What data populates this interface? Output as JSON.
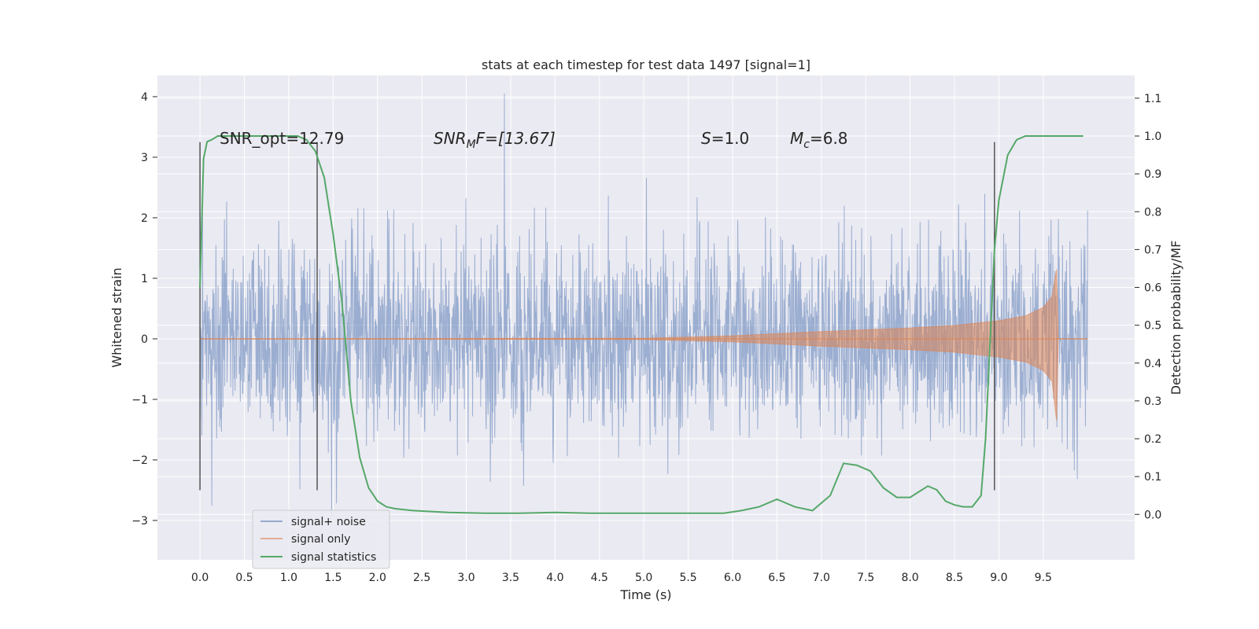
{
  "chart_data": {
    "type": "line",
    "title": "stats at each timestep for test data 1497 [signal=1]",
    "xlabel": "Time (s)",
    "ylabel": "Whitened strain",
    "y2label": "Detection probability/MF",
    "xlim": [
      -0.48,
      10.53
    ],
    "ylim": [
      -3.65,
      4.35
    ],
    "y2lim": [
      -0.12,
      1.16
    ],
    "xticks": [
      "0.0",
      "0.5",
      "1.0",
      "1.5",
      "2.0",
      "2.5",
      "3.0",
      "3.5",
      "4.0",
      "4.5",
      "5.0",
      "5.5",
      "6.0",
      "6.5",
      "7.0",
      "7.5",
      "8.0",
      "8.5",
      "9.0",
      "9.5"
    ],
    "yticks": [
      "4",
      "3",
      "2",
      "1",
      "0",
      "−1",
      "−2",
      "−3"
    ],
    "y2ticks": [
      "1.1",
      "1.0",
      "0.9",
      "0.8",
      "0.7",
      "0.6",
      "0.5",
      "0.4",
      "0.3",
      "0.2",
      "0.1",
      "0.0"
    ],
    "grid": true,
    "legend_position": "lower-left",
    "annotations": {
      "snr_opt": "SNR_opt=12.79",
      "snr_mf_pre": "SNR",
      "snr_mf_sub": "M",
      "snr_mf_post": "F=[13.67]",
      "s_pre": "S",
      "s_post": "=1.0",
      "mc_pre": "M",
      "mc_sub": "c",
      "mc_post": "=6.8"
    },
    "vertical_markers_x": [
      0.0,
      1.32,
      8.95
    ],
    "series": [
      {
        "name": "signal+ noise",
        "color": "#4c72b0",
        "description_values": {
          "x_range": [
            0.0,
            10.0
          ],
          "typical_range": [
            -1.6,
            1.6
          ],
          "max": 4.05,
          "max_x": 3.43,
          "min": -3.3
        }
      },
      {
        "name": "signal only",
        "color": "#dd8452",
        "envelope": {
          "x": [
            0.0,
            5.0,
            6.0,
            7.0,
            8.0,
            8.5,
            9.0,
            9.3,
            9.5,
            9.6,
            9.65,
            9.67,
            10.0
          ],
          "y": [
            0.0,
            0.01,
            0.05,
            0.12,
            0.18,
            0.22,
            0.3,
            0.38,
            0.52,
            0.7,
            1.15,
            0.0,
            0.0
          ]
        }
      },
      {
        "name": "signal statistics",
        "color": "#55a868",
        "axis": "right",
        "x": [
          0.0,
          0.04,
          0.08,
          0.13,
          0.2,
          0.3,
          0.5,
          0.8,
          1.0,
          1.1,
          1.2,
          1.3,
          1.4,
          1.5,
          1.6,
          1.7,
          1.8,
          1.9,
          2.0,
          2.1,
          2.2,
          2.4,
          2.8,
          3.2,
          3.6,
          4.0,
          4.4,
          4.8,
          5.2,
          5.6,
          5.9,
          6.1,
          6.3,
          6.5,
          6.7,
          6.9,
          7.1,
          7.25,
          7.4,
          7.55,
          7.7,
          7.85,
          8.0,
          8.1,
          8.2,
          8.3,
          8.4,
          8.5,
          8.6,
          8.7,
          8.8,
          8.85,
          8.9,
          8.95,
          9.0,
          9.1,
          9.2,
          9.3,
          9.5,
          9.7,
          9.95
        ],
        "y": [
          0.6,
          0.94,
          0.985,
          0.99,
          1.0,
          1.0,
          1.0,
          1.0,
          1.0,
          1.0,
          0.99,
          0.96,
          0.89,
          0.74,
          0.56,
          0.3,
          0.15,
          0.07,
          0.035,
          0.02,
          0.015,
          0.01,
          0.005,
          0.003,
          0.003,
          0.005,
          0.003,
          0.003,
          0.003,
          0.003,
          0.003,
          0.01,
          0.02,
          0.04,
          0.02,
          0.01,
          0.05,
          0.135,
          0.13,
          0.115,
          0.07,
          0.045,
          0.045,
          0.06,
          0.075,
          0.065,
          0.035,
          0.025,
          0.02,
          0.02,
          0.05,
          0.2,
          0.45,
          0.7,
          0.83,
          0.95,
          0.99,
          1.0,
          1.0,
          1.0,
          1.0
        ]
      }
    ]
  }
}
